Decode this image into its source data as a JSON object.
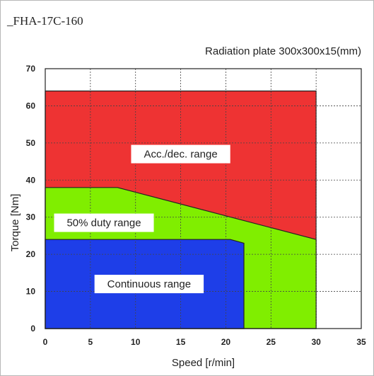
{
  "chart_data": {
    "type": "area",
    "title": "_FHA-17C-160",
    "subtitle": "Radiation plate 300x300x15(mm)",
    "xlabel": "Speed [r/min]",
    "ylabel": "Torque [Nm]",
    "xlim": [
      0,
      35
    ],
    "ylim": [
      0,
      70
    ],
    "x_ticks": [
      "0",
      "5",
      "10",
      "15",
      "20",
      "25",
      "30",
      "35"
    ],
    "y_ticks": [
      "0",
      "10",
      "20",
      "30",
      "40",
      "50",
      "60",
      "70"
    ],
    "grid": true,
    "series": [
      {
        "name": "Acc./dec. range",
        "color": "#ee3333",
        "points": [
          [
            0,
            64
          ],
          [
            30,
            64
          ],
          [
            30,
            0
          ],
          [
            0,
            0
          ]
        ]
      },
      {
        "name": "50% duty range",
        "color": "#80ee00",
        "points": [
          [
            0,
            38
          ],
          [
            8,
            38
          ],
          [
            30,
            24
          ],
          [
            30,
            0
          ],
          [
            0,
            0
          ]
        ]
      },
      {
        "name": "Continuous range",
        "color": "#1e3ee8",
        "points": [
          [
            0,
            24
          ],
          [
            20.5,
            24
          ],
          [
            22,
            23
          ],
          [
            22,
            0
          ],
          [
            0,
            0
          ]
        ]
      }
    ],
    "labels": [
      {
        "text": "Acc./dec. range",
        "x": 15,
        "y": 47
      },
      {
        "text": "50% duty range",
        "x": 6.5,
        "y": 28.5
      },
      {
        "text": "Continuous range",
        "x": 11.5,
        "y": 12
      }
    ]
  }
}
